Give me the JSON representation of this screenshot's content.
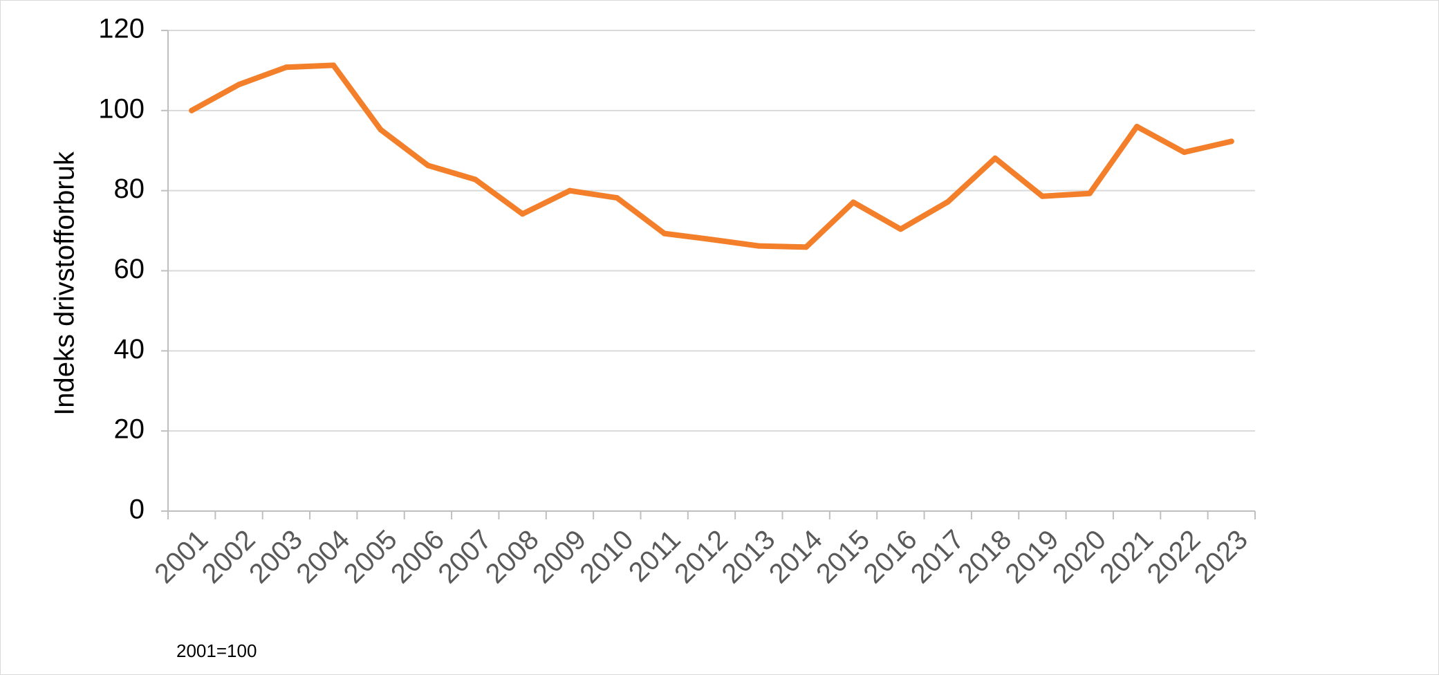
{
  "chart_data": {
    "type": "line",
    "title": "",
    "xlabel": "",
    "ylabel": "Indeks drivstofforbruk",
    "categories": [
      "2001",
      "2002",
      "2003",
      "2004",
      "2005",
      "2006",
      "2007",
      "2008",
      "2009",
      "2010",
      "2011",
      "2012",
      "2013",
      "2014",
      "2015",
      "2016",
      "2017",
      "2018",
      "2019",
      "2020",
      "2021",
      "2022",
      "2023"
    ],
    "series": [
      {
        "values": [
          100,
          106.5,
          110.8,
          111.3,
          95.2,
          86.3,
          82.8,
          74.2,
          80.0,
          78.2,
          69.3,
          67.8,
          66.2,
          65.9,
          77.1,
          70.4,
          77.2,
          88.1,
          78.6,
          79.3,
          96.0,
          89.6,
          92.3
        ]
      }
    ],
    "ylim": [
      0,
      120
    ],
    "yticks": [
      0,
      20,
      40,
      60,
      80,
      100,
      120
    ],
    "grid": true,
    "legend": "none",
    "colors": {
      "line": "#f47f2a",
      "grid": "#d9d9d9",
      "axis": "#bfbfbf"
    },
    "footnote": "2001=100"
  }
}
